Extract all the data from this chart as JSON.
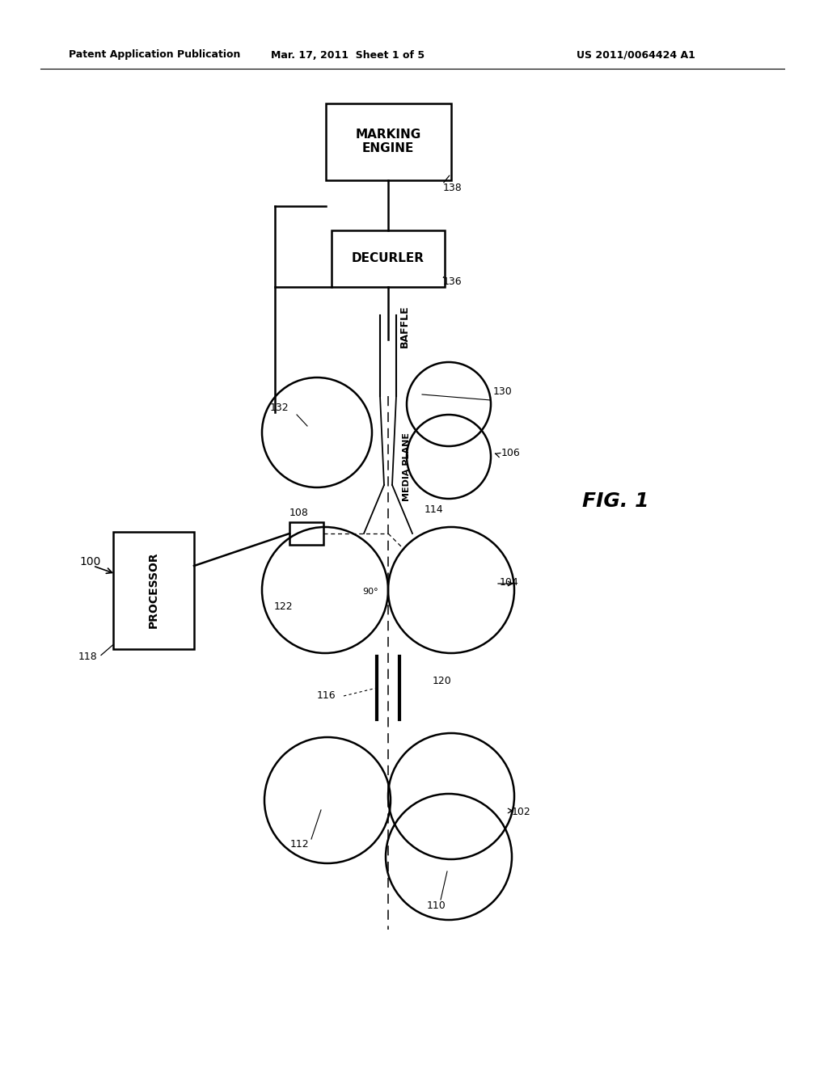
{
  "bg_color": "#ffffff",
  "line_color": "#000000",
  "header_left": "Patent Application Publication",
  "header_mid": "Mar. 17, 2011  Sheet 1 of 5",
  "header_right": "US 2011/0064424 A1",
  "fig_label": "FIG. 1",
  "marking_engine_label": "MARKING\nENGINE",
  "decurler_label": "DECURLER",
  "baffle_label": "BAFFLE",
  "media_plane_label": "MEDIA PLANE",
  "processor_label": "PROCESSOR"
}
